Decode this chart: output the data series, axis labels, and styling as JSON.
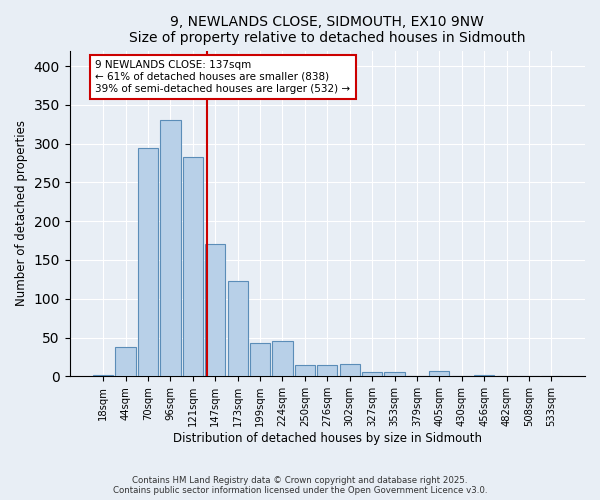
{
  "title": "9, NEWLANDS CLOSE, SIDMOUTH, EX10 9NW",
  "subtitle": "Size of property relative to detached houses in Sidmouth",
  "xlabel": "Distribution of detached houses by size in Sidmouth",
  "ylabel": "Number of detached properties",
  "bin_labels": [
    "18sqm",
    "44sqm",
    "70sqm",
    "96sqm",
    "121sqm",
    "147sqm",
    "173sqm",
    "199sqm",
    "224sqm",
    "250sqm",
    "276sqm",
    "302sqm",
    "327sqm",
    "353sqm",
    "379sqm",
    "405sqm",
    "430sqm",
    "456sqm",
    "482sqm",
    "508sqm",
    "533sqm"
  ],
  "bar_heights": [
    2,
    38,
    295,
    330,
    283,
    170,
    123,
    43,
    46,
    15,
    15,
    16,
    6,
    6,
    0,
    7,
    0,
    2,
    1,
    1,
    1
  ],
  "bar_color": "#b8d0e8",
  "bar_edge_color": "#5b8db8",
  "vline_x": 4.62,
  "vline_color": "#cc0000",
  "annotation_line1": "9 NEWLANDS CLOSE: 137sqm",
  "annotation_line2": "← 61% of detached houses are smaller (838)",
  "annotation_line3": "39% of semi-detached houses are larger (532) →",
  "annotation_box_color": "#ffffff",
  "annotation_box_edge": "#cc0000",
  "ylim": [
    0,
    420
  ],
  "yticks": [
    0,
    50,
    100,
    150,
    200,
    250,
    300,
    350,
    400
  ],
  "footer": "Contains HM Land Registry data © Crown copyright and database right 2025.\nContains public sector information licensed under the Open Government Licence v3.0.",
  "bg_color": "#e8eef5",
  "plot_bg_color": "#e8eef5",
  "grid_color": "#ffffff"
}
